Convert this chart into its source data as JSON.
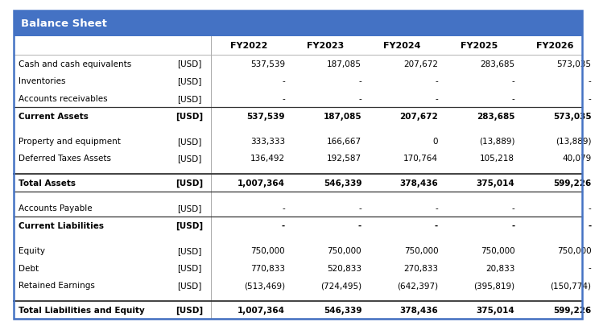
{
  "title": "Balance Sheet",
  "header_bg": "#4472C4",
  "header_text_color": "#FFFFFF",
  "subheader_text_color": "#000000",
  "fy_labels": [
    "FY2022",
    "FY2023",
    "FY2024",
    "FY2025",
    "FY2026"
  ],
  "rows": [
    {
      "label": "Cash and cash equivalents",
      "unit": "[USD]",
      "values": [
        "537,539",
        "187,085",
        "207,672",
        "283,685",
        "573,035"
      ],
      "bold": false,
      "top_border": false,
      "bottom_border": false
    },
    {
      "label": "Inventories",
      "unit": "[USD]",
      "values": [
        "-",
        "-",
        "-",
        "-",
        "-"
      ],
      "bold": false,
      "top_border": false,
      "bottom_border": false
    },
    {
      "label": "Accounts receivables",
      "unit": "[USD]",
      "values": [
        "-",
        "-",
        "-",
        "-",
        "-"
      ],
      "bold": false,
      "top_border": false,
      "bottom_border": true
    },
    {
      "label": "Current Assets",
      "unit": "[USD]",
      "values": [
        "537,539",
        "187,085",
        "207,672",
        "283,685",
        "573,035"
      ],
      "bold": true,
      "top_border": false,
      "bottom_border": false
    },
    {
      "label": "",
      "unit": "",
      "values": [
        "",
        "",
        "",
        "",
        ""
      ],
      "bold": false,
      "top_border": false,
      "bottom_border": false
    },
    {
      "label": "Property and equipment",
      "unit": "[USD]",
      "values": [
        "333,333",
        "166,667",
        "0",
        "(13,889)",
        "(13,889)"
      ],
      "bold": false,
      "top_border": false,
      "bottom_border": false
    },
    {
      "label": "Deferred Taxes Assets",
      "unit": "[USD]",
      "values": [
        "136,492",
        "192,587",
        "170,764",
        "105,218",
        "40,079"
      ],
      "bold": false,
      "top_border": false,
      "bottom_border": false
    },
    {
      "label": "",
      "unit": "",
      "values": [
        "",
        "",
        "",
        "",
        ""
      ],
      "bold": false,
      "top_border": false,
      "bottom_border": false
    },
    {
      "label": "Total Assets",
      "unit": "[USD]",
      "values": [
        "1,007,364",
        "546,339",
        "378,436",
        "375,014",
        "599,226"
      ],
      "bold": true,
      "top_border": true,
      "bottom_border": true
    },
    {
      "label": "",
      "unit": "",
      "values": [
        "",
        "",
        "",
        "",
        ""
      ],
      "bold": false,
      "top_border": false,
      "bottom_border": false
    },
    {
      "label": "Accounts Payable",
      "unit": "[USD]",
      "values": [
        "-",
        "-",
        "-",
        "-",
        "-"
      ],
      "bold": false,
      "top_border": false,
      "bottom_border": true
    },
    {
      "label": "Current Liabilities",
      "unit": "[USD]",
      "values": [
        "-",
        "-",
        "-",
        "-",
        "-"
      ],
      "bold": true,
      "top_border": false,
      "bottom_border": false
    },
    {
      "label": "",
      "unit": "",
      "values": [
        "",
        "",
        "",
        "",
        ""
      ],
      "bold": false,
      "top_border": false,
      "bottom_border": false
    },
    {
      "label": "Equity",
      "unit": "[USD]",
      "values": [
        "750,000",
        "750,000",
        "750,000",
        "750,000",
        "750,000"
      ],
      "bold": false,
      "top_border": false,
      "bottom_border": false
    },
    {
      "label": "Debt",
      "unit": "[USD]",
      "values": [
        "770,833",
        "520,833",
        "270,833",
        "20,833",
        "-"
      ],
      "bold": false,
      "top_border": false,
      "bottom_border": false
    },
    {
      "label": "Retained Earnings",
      "unit": "[USD]",
      "values": [
        "(513,469)",
        "(724,495)",
        "(642,397)",
        "(395,819)",
        "(150,774)"
      ],
      "bold": false,
      "top_border": false,
      "bottom_border": false
    },
    {
      "label": "",
      "unit": "",
      "values": [
        "",
        "",
        "",
        "",
        ""
      ],
      "bold": false,
      "top_border": false,
      "bottom_border": false
    },
    {
      "label": "Total Liabilities and Equity",
      "unit": "[USD]",
      "values": [
        "1,007,364",
        "546,339",
        "378,436",
        "375,014",
        "599,226"
      ],
      "bold": true,
      "top_border": true,
      "bottom_border": true
    }
  ],
  "font_size": 7.5,
  "header_font_size": 9.5,
  "subheader_font_size": 8.0,
  "outer_border_color": "#4472C4",
  "divider_color": "#888888",
  "border_color_bold": "#333333",
  "border_color_light": "#333333"
}
